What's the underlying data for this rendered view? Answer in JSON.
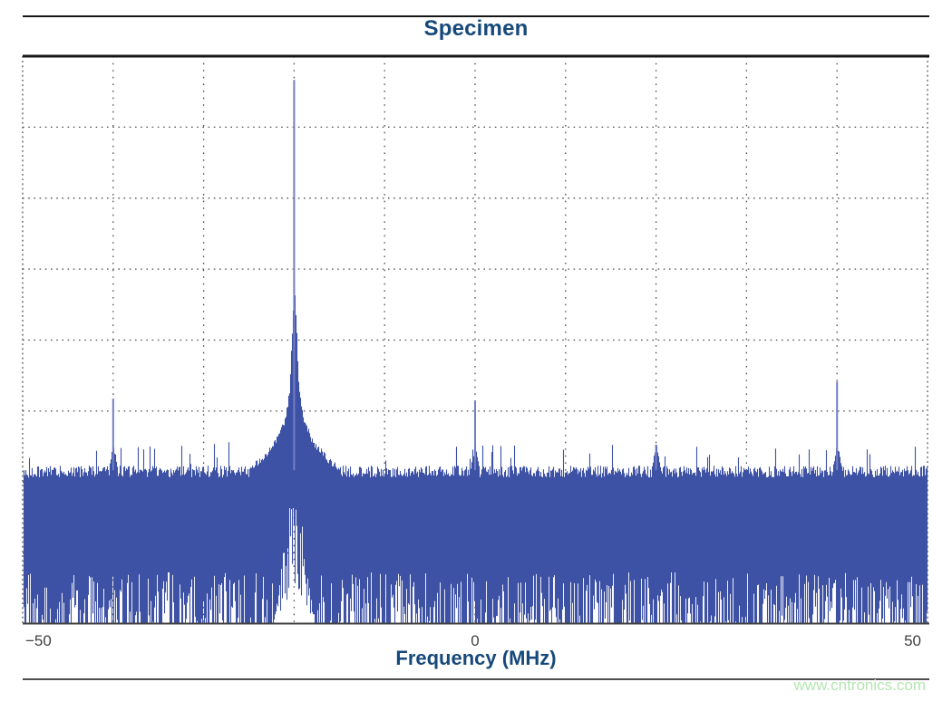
{
  "figure": {
    "title": "Specimen",
    "x_axis_label": "Frequency (MHz)",
    "watermark": "www.cntronics.com"
  },
  "chart_data": {
    "type": "line",
    "subtype": "spectrum-analyzer-trace",
    "title": "Specimen",
    "xlabel": "Frequency (MHz)",
    "ylabel": "",
    "x_unit": "MHz",
    "xlim": [
      -50,
      50
    ],
    "x_ticks": [
      -50,
      0,
      50
    ],
    "x_tick_labels": [
      "−50",
      "0",
      "50"
    ],
    "x_grid_step_mhz": 10,
    "y_axis_labeled": false,
    "y_divisions": 8,
    "grid": "dotted",
    "legend": "none",
    "noise_floor_top_frac": 0.266,
    "noise_solid_band_bottom_frac": 0.091,
    "under_carrier_notch": {
      "center_mhz": -20,
      "half_width_mhz": 2.4,
      "apex_frac": 0.3
    },
    "peaks": [
      {
        "freq_mhz": -40,
        "height_frac": 0.397,
        "kind": "spur"
      },
      {
        "freq_mhz": -20,
        "height_frac": 0.958,
        "kind": "carrier-with-skirt"
      },
      {
        "freq_mhz": 0,
        "height_frac": 0.392,
        "kind": "spur"
      },
      {
        "freq_mhz": 20,
        "height_frac": 0.316,
        "kind": "spur"
      },
      {
        "freq_mhz": 40,
        "height_frac": 0.427,
        "kind": "spur"
      }
    ],
    "carrier_skirt_profile": [
      {
        "offset_mhz": 0.1,
        "height_frac": 0.573
      },
      {
        "offset_mhz": 0.5,
        "height_frac": 0.413
      },
      {
        "offset_mhz": 1.0,
        "height_frac": 0.362
      },
      {
        "offset_mhz": 2.0,
        "height_frac": 0.321
      },
      {
        "offset_mhz": 3.5,
        "height_frac": 0.293
      },
      {
        "offset_mhz": 5.0,
        "height_frac": 0.271
      }
    ],
    "colors": {
      "trace": "#3d51a5",
      "peak_spire": "#737fc4",
      "grid": "#4f4f4f",
      "axis": "#3f3f3f",
      "border": "#161616",
      "title": "#16497b",
      "tick_label": "#3f3f3f",
      "watermark": "#b5e5b1",
      "background": "#ffffff"
    }
  }
}
